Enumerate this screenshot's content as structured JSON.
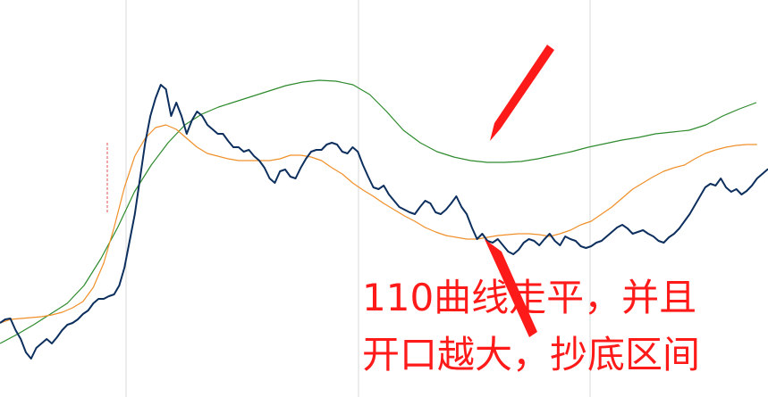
{
  "chart_data": {
    "type": "line",
    "title": "",
    "xlabel": "",
    "ylabel": "",
    "grid": "vertical",
    "legend": "none",
    "colors": {
      "price": "#0d2f5e",
      "ma_orange": "#f0902a",
      "ma_green": "#2e8b2e",
      "annotation": "#ff1a1a",
      "spike_marker": "#e05050",
      "gridline": "#d9d9d9"
    },
    "series": [
      {
        "key": "price",
        "values": [
          362,
          358,
          357,
          370,
          380,
          395,
          402,
          390,
          385,
          380,
          385,
          378,
          370,
          364,
          362,
          358,
          352,
          348,
          340,
          335,
          335,
          332,
          330,
          320,
          300,
          270,
          240,
          200,
          160,
          130,
          110,
          95,
          100,
          130,
          115,
          130,
          150,
          135,
          125,
          130,
          140,
          145,
          150,
          150,
          158,
          165,
          165,
          170,
          168,
          175,
          180,
          188,
          200,
          205,
          192,
          190,
          198,
          200,
          188,
          178,
          170,
          168,
          168,
          162,
          160,
          162,
          170,
          172,
          165,
          170,
          185,
          198,
          210,
          212,
          208,
          218,
          225,
          232,
          235,
          238,
          240,
          232,
          225,
          228,
          238,
          240,
          235,
          228,
          220,
          232,
          240,
          255,
          268,
          262,
          270,
          272,
          268,
          275,
          282,
          285,
          280,
          272,
          268,
          270,
          275,
          268,
          262,
          270,
          275,
          265,
          268,
          270,
          276,
          278,
          276,
          272,
          270,
          265,
          260,
          255,
          252,
          256,
          262,
          260,
          258,
          262,
          265,
          270,
          272,
          266,
          262,
          256,
          248,
          240,
          230,
          220,
          210,
          206,
          208,
          200,
          210,
          215,
          212,
          218,
          214,
          208,
          200,
          195,
          190,
          188,
          182,
          180,
          175,
          168,
          165
        ],
        "x_step": 5.8,
        "x_origin": 0
      },
      {
        "key": "ma_orange",
        "values": [
          362,
          358,
          357,
          356,
          355,
          353,
          350,
          345,
          338,
          322,
          295,
          255,
          210,
          175,
          155,
          143,
          140,
          145,
          155,
          165,
          172,
          175,
          178,
          180,
          180,
          180,
          180,
          178,
          174,
          174,
          176,
          180,
          188,
          195,
          205,
          213,
          220,
          228,
          235,
          242,
          248,
          255,
          260,
          264,
          266,
          268,
          268,
          266,
          264,
          263,
          262,
          262,
          263,
          265,
          262,
          258,
          252,
          248,
          240,
          232,
          222,
          212,
          205,
          198,
          192,
          188,
          185,
          178,
          172,
          168,
          165,
          163,
          162,
          162
        ],
        "x_step": 11.6,
        "x_origin": 0
      },
      {
        "key": "ma_green",
        "values": [
          385,
          375,
          364,
          352,
          340,
          320,
          290,
          255,
          215,
          185,
          160,
          140,
          128,
          120,
          114,
          108,
          102,
          96,
          92,
          90,
          91,
          95,
          106,
          125,
          146,
          160,
          170,
          176,
          180,
          182,
          182,
          181,
          178,
          174,
          170,
          165,
          161,
          157,
          154,
          150,
          148,
          146,
          140,
          130,
          122,
          115
        ],
        "x_step": 18.8,
        "x_origin": 0
      }
    ],
    "annotations": [
      {
        "lines": [
          "110曲线走平，并且",
          "开口越大，抄底区间"
        ]
      }
    ]
  }
}
